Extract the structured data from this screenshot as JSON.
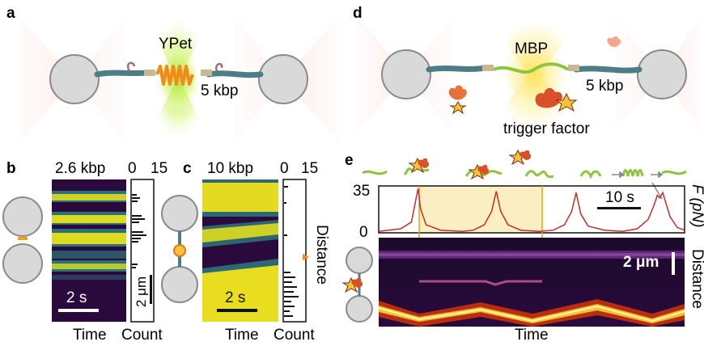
{
  "panels": {
    "a": {
      "letter": "a",
      "protein_label": "YPet",
      "dna_label": "5 kbp"
    },
    "b": {
      "letter": "b",
      "length_label": "2.6 kbp",
      "hist_tick_min": "0",
      "hist_tick_max": "15",
      "time_scale_label": "2 s",
      "distance_scale_label": "2 μm",
      "x_label": "Time",
      "hist_x_label": "Count"
    },
    "c": {
      "letter": "c",
      "length_label": "10 kbp",
      "hist_tick_min": "0",
      "hist_tick_max": "15",
      "time_scale_label": "2 s",
      "y_label": "Distance",
      "x_label": "Time",
      "hist_x_label": "Count"
    },
    "d": {
      "letter": "d",
      "protein_label": "MBP",
      "dna_label": "5 kbp",
      "chaperone_label": "trigger factor"
    },
    "e": {
      "letter": "e",
      "force_axis_label": "F (pN)",
      "force_tick_max": "35",
      "force_tick_min": "0",
      "time_scale_label": "10 s",
      "distance_scale_label": "2 μm",
      "y_label": "Distance",
      "x_label": "Time"
    }
  },
  "colors": {
    "laser_red": "#f4a38c",
    "ypet_glow": "#b8ee3a",
    "mbp_glow": "#fde96a",
    "bead": "#d9d9d9",
    "dna": "#4e7d86",
    "protein_orange": "#f28a1a",
    "tf_red": "#d9502a",
    "mbp_green": "#8cc63f",
    "force_trace": "#b8342a",
    "highlight": "#fbeec2",
    "kymo_dark": "#2a0a3d",
    "kymo_yellow": "#f2e51a",
    "kymo_teal": "#2a8a8a"
  },
  "chart_data": {
    "type": "line",
    "series": [
      {
        "values": [
          [
            0,
            1
          ],
          [
            6,
            3
          ],
          [
            9,
            8
          ],
          [
            10,
            22
          ],
          [
            10.8,
            33
          ],
          [
            11.5,
            18
          ],
          [
            13,
            6
          ],
          [
            17,
            2
          ],
          [
            23,
            1
          ],
          [
            26,
            2
          ],
          [
            29,
            6
          ],
          [
            31,
            16
          ],
          [
            32.3,
            31
          ],
          [
            33.5,
            16
          ],
          [
            35.5,
            6
          ],
          [
            39,
            2
          ],
          [
            44,
            1
          ],
          [
            48,
            2
          ],
          [
            51,
            6
          ],
          [
            53,
            16
          ],
          [
            54.2,
            30
          ],
          [
            55.5,
            14
          ],
          [
            57.5,
            5
          ],
          [
            62,
            2
          ],
          [
            67,
            1
          ],
          [
            71,
            3
          ],
          [
            74,
            10
          ],
          [
            75.5,
            20
          ],
          [
            76.5,
            28
          ],
          [
            77.2,
            26
          ],
          [
            78,
            30
          ],
          [
            80,
            12
          ],
          [
            82,
            4
          ],
          [
            84,
            2
          ]
        ]
      }
    ],
    "ylim": [
      0,
      35
    ],
    "yticks": [
      "0",
      "35"
    ],
    "ylabel": "F (pN)",
    "xlabel": "Time"
  }
}
